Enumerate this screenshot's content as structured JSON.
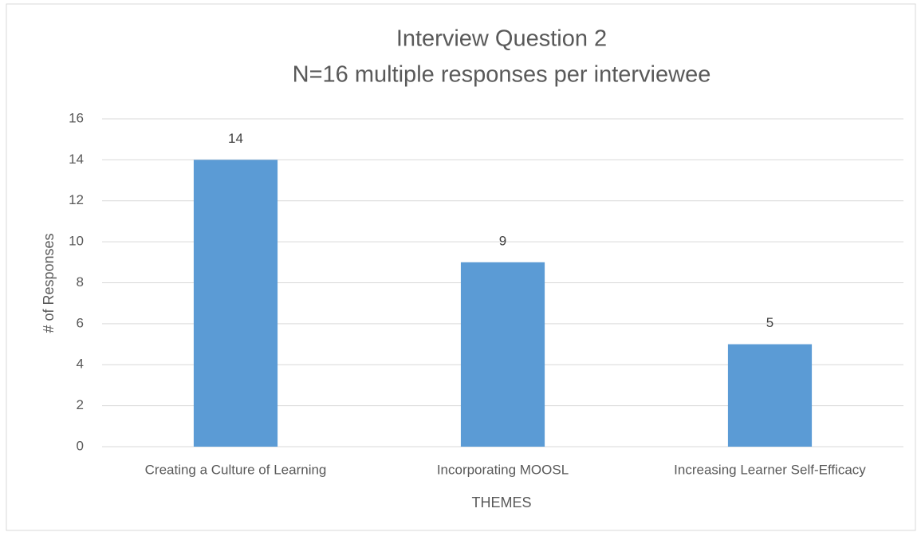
{
  "chart_data": {
    "type": "bar",
    "title": "Interview Question 2",
    "subtitle": "N=16 multiple responses per interviewee",
    "x_label": "THEMES",
    "y_label": "# of Responses",
    "categories": [
      "Creating a Culture of Learning",
      "Incorporating MOOSL",
      "Increasing Learner Self-Efficacy"
    ],
    "values": [
      14,
      9,
      5
    ],
    "color": "#5b9bd5",
    "ylim": [
      0,
      16
    ],
    "yticks": [
      0,
      2,
      4,
      6,
      8,
      10,
      12,
      14,
      16
    ],
    "grid": true
  }
}
